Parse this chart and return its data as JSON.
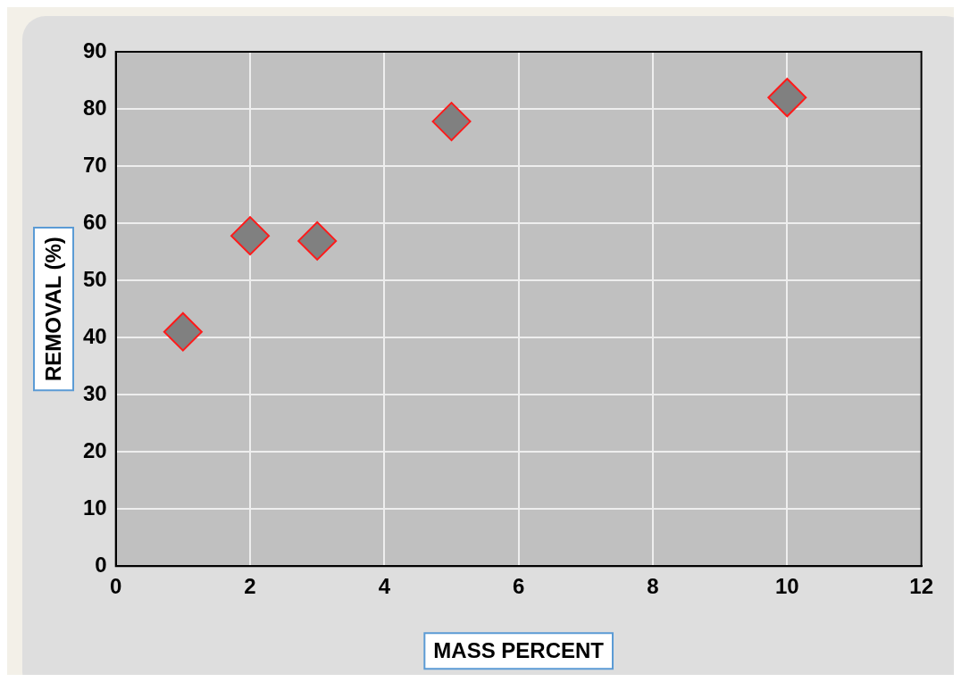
{
  "chart_data": {
    "type": "scatter",
    "xlabel": "MASS PERCENT",
    "ylabel": "REMOVAL (%)",
    "x": [
      1,
      2,
      3,
      5,
      10
    ],
    "series": [
      {
        "color": "#808080",
        "values": [
          41,
          57.8,
          56.9,
          77.8,
          82
        ]
      }
    ],
    "xlim": [
      0,
      12
    ],
    "xticks": [
      0,
      2,
      4,
      6,
      8,
      10,
      12
    ],
    "ylim": [
      0,
      90
    ],
    "yticks": [
      0,
      10,
      20,
      30,
      40,
      50,
      60,
      70,
      80,
      90
    ],
    "grid": true,
    "marker": "diamond"
  }
}
